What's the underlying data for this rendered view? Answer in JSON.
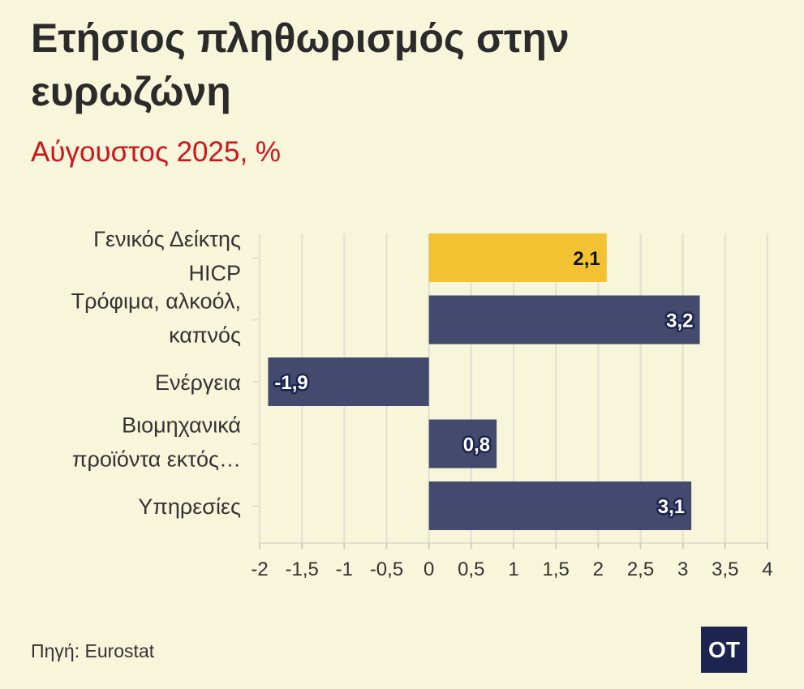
{
  "title": "Ετήσιος πληθωρισμός στην ευρωζώνη",
  "subtitle": "Αύγουστος 2025, %",
  "source": "Πηγή: Eurostat",
  "logo": "OT",
  "colors": {
    "background": "#f7f5da",
    "highlight": "#f2c232",
    "bar": "#434a6e",
    "subtitle": "#d0141b",
    "logo_bg": "#1c2450"
  },
  "chart_data": {
    "type": "bar",
    "orientation": "horizontal",
    "categories": [
      [
        "Γενικός Δείκτης",
        "HICP"
      ],
      [
        "Τρόφιμα, αλκοόλ,",
        "καπνός"
      ],
      [
        "Ενέργεια"
      ],
      [
        "Βιομηχανικά",
        "προϊόντα εκτός…"
      ],
      [
        "Υπηρεσίες"
      ]
    ],
    "values": [
      2.1,
      3.2,
      -1.9,
      0.8,
      3.1
    ],
    "value_labels": [
      "2,1",
      "3,2",
      "-1,9",
      "0,8",
      "3,1"
    ],
    "highlight_index": 0,
    "xlim": [
      -2,
      4
    ],
    "xticks": [
      -2,
      -1.5,
      -1,
      -0.5,
      0,
      0.5,
      1,
      1.5,
      2,
      2.5,
      3,
      3.5,
      4
    ],
    "xtick_labels": [
      "-2",
      "-1,5",
      "-1",
      "-0,5",
      "0",
      "0,5",
      "1",
      "1,5",
      "2",
      "2,5",
      "3",
      "3,5",
      "4"
    ],
    "grid": true
  }
}
